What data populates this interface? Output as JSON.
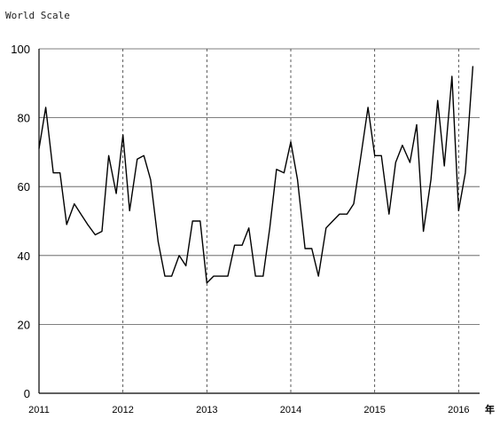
{
  "chart_data": {
    "type": "line",
    "title": "",
    "ylabel": "World Scale",
    "xlabel": "",
    "corner_mark": "年",
    "ylim": [
      0,
      100
    ],
    "yticks": [
      0,
      20,
      40,
      60,
      80,
      100
    ],
    "xlim": [
      2011,
      2016.25
    ],
    "xticks": [
      {
        "value": 2011,
        "label": "2011"
      },
      {
        "value": 2012,
        "label": "2012"
      },
      {
        "value": 2013,
        "label": "2013"
      },
      {
        "value": 2014,
        "label": "2014"
      },
      {
        "value": 2015,
        "label": "2015"
      },
      {
        "value": 2016,
        "label": "2016"
      }
    ],
    "grid": {
      "horizontal": "solid",
      "vertical": "dashed"
    },
    "series": [
      {
        "name": "",
        "x": [
          2011.0,
          2011.08,
          2011.17,
          2011.25,
          2011.33,
          2011.42,
          2011.5,
          2011.58,
          2011.67,
          2011.75,
          2011.83,
          2011.92,
          2012.0,
          2012.08,
          2012.17,
          2012.25,
          2012.33,
          2012.42,
          2012.5,
          2012.58,
          2012.67,
          2012.75,
          2012.83,
          2012.92,
          2013.0,
          2013.08,
          2013.17,
          2013.25,
          2013.33,
          2013.42,
          2013.5,
          2013.58,
          2013.67,
          2013.75,
          2013.83,
          2013.92,
          2014.0,
          2014.08,
          2014.17,
          2014.25,
          2014.33,
          2014.42,
          2014.5,
          2014.58,
          2014.67,
          2014.75,
          2014.83,
          2014.92,
          2015.0,
          2015.08,
          2015.17,
          2015.25,
          2015.33,
          2015.42,
          2015.5,
          2015.58,
          2015.67,
          2015.75,
          2015.83,
          2015.92,
          2016.0,
          2016.08,
          2016.17
        ],
        "y": [
          71,
          83,
          64,
          64,
          49,
          55,
          52,
          49,
          46,
          47,
          69,
          58,
          75,
          53,
          68,
          69,
          62,
          44,
          34,
          34,
          40,
          37,
          50,
          50,
          32,
          34,
          34,
          34,
          43,
          43,
          48,
          34,
          34,
          48,
          65,
          64,
          73,
          62,
          42,
          42,
          34,
          48,
          50,
          52,
          52,
          55,
          68,
          83,
          69,
          69,
          52,
          67,
          72,
          67,
          78,
          47,
          62,
          85,
          66,
          92,
          53,
          64,
          95
        ]
      }
    ]
  }
}
